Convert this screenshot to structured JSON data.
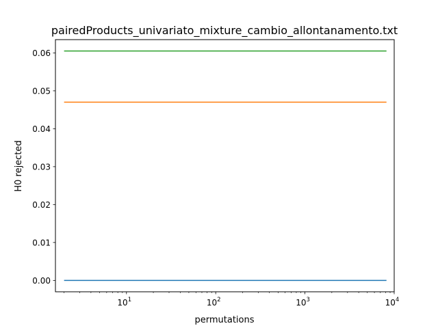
{
  "chart_data": {
    "type": "line",
    "title": "pairedProducts_univariato_mixture_cambio_allontanamento.txt",
    "xlabel": "permutations",
    "ylabel": "H0 rejected",
    "xscale": "log",
    "xlim": [
      1.6,
      10000
    ],
    "ylim": [
      -0.003,
      0.0635
    ],
    "x_ticks": [
      {
        "value": 10,
        "label": "10",
        "exp": "1"
      },
      {
        "value": 100,
        "label": "10",
        "exp": "2"
      },
      {
        "value": 1000,
        "label": "10",
        "exp": "3"
      },
      {
        "value": 10000,
        "label": "10",
        "exp": "4"
      }
    ],
    "y_ticks": [
      {
        "value": 0.0,
        "label": "0.00"
      },
      {
        "value": 0.01,
        "label": "0.01"
      },
      {
        "value": 0.02,
        "label": "0.02"
      },
      {
        "value": 0.03,
        "label": "0.03"
      },
      {
        "value": 0.04,
        "label": "0.04"
      },
      {
        "value": 0.05,
        "label": "0.05"
      },
      {
        "value": 0.06,
        "label": "0.06"
      }
    ],
    "grid": false,
    "legend": false,
    "series": [
      {
        "color": "#1f77b4",
        "x": [
          2,
          8192
        ],
        "y": [
          0.0,
          0.0
        ]
      },
      {
        "color": "#ff7f0e",
        "x": [
          2,
          8192
        ],
        "y": [
          0.047,
          0.047
        ]
      },
      {
        "color": "#2ca02c",
        "x": [
          2,
          8192
        ],
        "y": [
          0.0605,
          0.0605
        ]
      }
    ]
  }
}
